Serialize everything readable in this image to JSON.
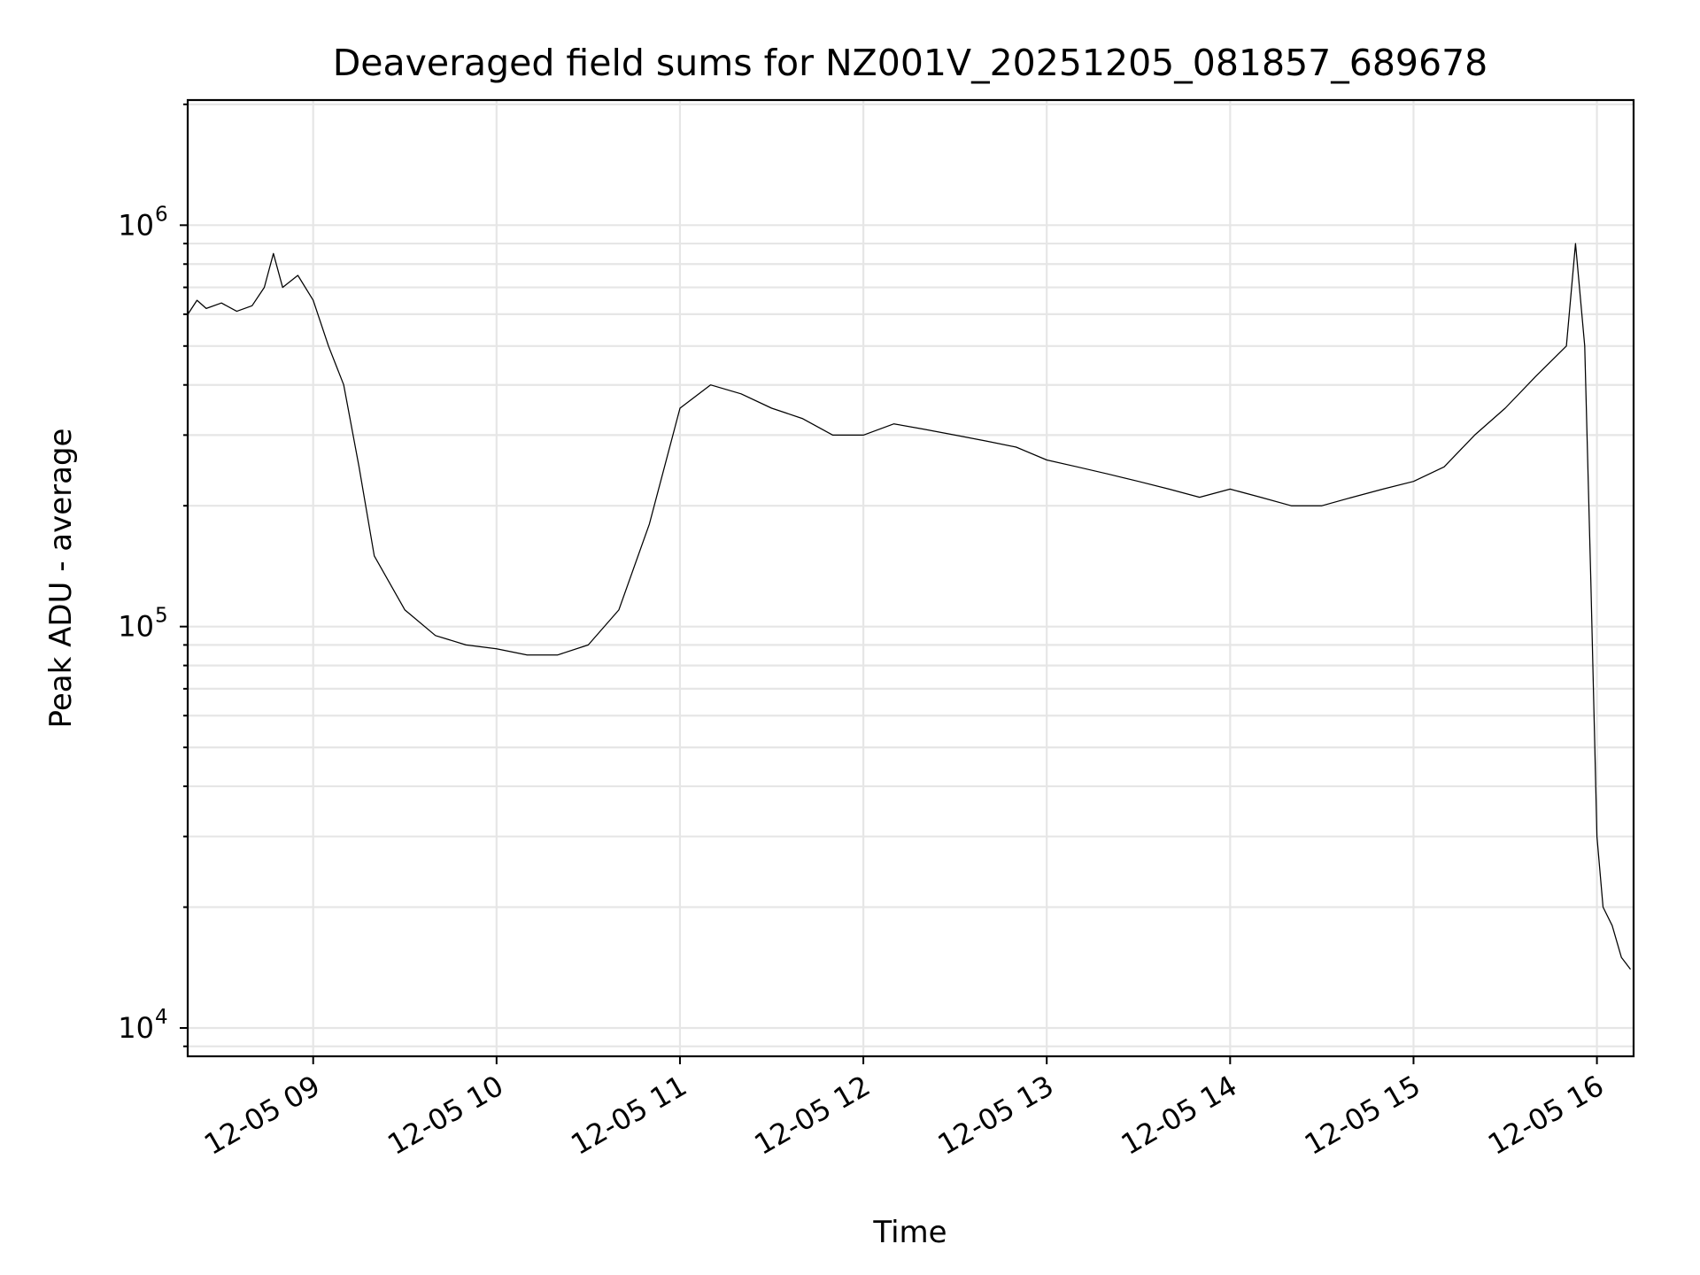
{
  "chart_data": {
    "type": "line",
    "title": "Deaveraged field sums for NZ001V_20251205_081857_689678",
    "xlabel": "Time",
    "ylabel": "Peak ADU - average",
    "yscale": "log",
    "ylim": [
      8500,
      2050000
    ],
    "xlim": [
      "2025-12-05 08:18:57",
      "2025-12-05 16:12:00"
    ],
    "grid": true,
    "legend": "none",
    "line_color": "#000000",
    "x_ticks": [
      {
        "t": "2025-12-05 09:00",
        "label": "12-05 09"
      },
      {
        "t": "2025-12-05 10:00",
        "label": "12-05 10"
      },
      {
        "t": "2025-12-05 11:00",
        "label": "12-05 11"
      },
      {
        "t": "2025-12-05 12:00",
        "label": "12-05 12"
      },
      {
        "t": "2025-12-05 13:00",
        "label": "12-05 13"
      },
      {
        "t": "2025-12-05 14:00",
        "label": "12-05 14"
      },
      {
        "t": "2025-12-05 15:00",
        "label": "12-05 15"
      },
      {
        "t": "2025-12-05 16:00",
        "label": "12-05 16"
      }
    ],
    "y_ticks": [
      {
        "value": 10000,
        "base": "10",
        "exp": "4"
      },
      {
        "value": 100000,
        "base": "10",
        "exp": "5"
      },
      {
        "value": 1000000,
        "base": "10",
        "exp": "6"
      }
    ],
    "series": [
      {
        "points": [
          [
            "2025-12-05 08:19",
            600000
          ],
          [
            "2025-12-05 08:22",
            650000
          ],
          [
            "2025-12-05 08:25",
            620000
          ],
          [
            "2025-12-05 08:30",
            640000
          ],
          [
            "2025-12-05 08:35",
            610000
          ],
          [
            "2025-12-05 08:40",
            630000
          ],
          [
            "2025-12-05 08:44",
            700000
          ],
          [
            "2025-12-05 08:47",
            850000
          ],
          [
            "2025-12-05 08:50",
            700000
          ],
          [
            "2025-12-05 08:55",
            750000
          ],
          [
            "2025-12-05 09:00",
            650000
          ],
          [
            "2025-12-05 09:05",
            500000
          ],
          [
            "2025-12-05 09:10",
            400000
          ],
          [
            "2025-12-05 09:15",
            250000
          ],
          [
            "2025-12-05 09:20",
            150000
          ],
          [
            "2025-12-05 09:30",
            110000
          ],
          [
            "2025-12-05 09:40",
            95000
          ],
          [
            "2025-12-05 09:50",
            90000
          ],
          [
            "2025-12-05 10:00",
            88000
          ],
          [
            "2025-12-05 10:10",
            85000
          ],
          [
            "2025-12-05 10:20",
            85000
          ],
          [
            "2025-12-05 10:30",
            90000
          ],
          [
            "2025-12-05 10:40",
            110000
          ],
          [
            "2025-12-05 10:50",
            180000
          ],
          [
            "2025-12-05 11:00",
            350000
          ],
          [
            "2025-12-05 11:10",
            400000
          ],
          [
            "2025-12-05 11:20",
            380000
          ],
          [
            "2025-12-05 11:30",
            350000
          ],
          [
            "2025-12-05 11:40",
            330000
          ],
          [
            "2025-12-05 11:50",
            300000
          ],
          [
            "2025-12-05 12:00",
            300000
          ],
          [
            "2025-12-05 12:10",
            320000
          ],
          [
            "2025-12-05 12:20",
            310000
          ],
          [
            "2025-12-05 12:30",
            300000
          ],
          [
            "2025-12-05 12:40",
            290000
          ],
          [
            "2025-12-05 12:50",
            280000
          ],
          [
            "2025-12-05 13:00",
            260000
          ],
          [
            "2025-12-05 13:10",
            250000
          ],
          [
            "2025-12-05 13:20",
            240000
          ],
          [
            "2025-12-05 13:30",
            230000
          ],
          [
            "2025-12-05 13:40",
            220000
          ],
          [
            "2025-12-05 13:50",
            210000
          ],
          [
            "2025-12-05 14:00",
            220000
          ],
          [
            "2025-12-05 14:10",
            210000
          ],
          [
            "2025-12-05 14:20",
            200000
          ],
          [
            "2025-12-05 14:30",
            200000
          ],
          [
            "2025-12-05 14:40",
            210000
          ],
          [
            "2025-12-05 14:50",
            220000
          ],
          [
            "2025-12-05 15:00",
            230000
          ],
          [
            "2025-12-05 15:10",
            250000
          ],
          [
            "2025-12-05 15:20",
            300000
          ],
          [
            "2025-12-05 15:30",
            350000
          ],
          [
            "2025-12-05 15:40",
            420000
          ],
          [
            "2025-12-05 15:50",
            500000
          ],
          [
            "2025-12-05 15:53",
            900000
          ],
          [
            "2025-12-05 15:56",
            500000
          ],
          [
            "2025-12-05 15:58",
            130000
          ],
          [
            "2025-12-05 16:00",
            30000
          ],
          [
            "2025-12-05 16:02",
            20000
          ],
          [
            "2025-12-05 16:05",
            18000
          ],
          [
            "2025-12-05 16:08",
            15000
          ],
          [
            "2025-12-05 16:11",
            14000
          ]
        ]
      }
    ]
  }
}
